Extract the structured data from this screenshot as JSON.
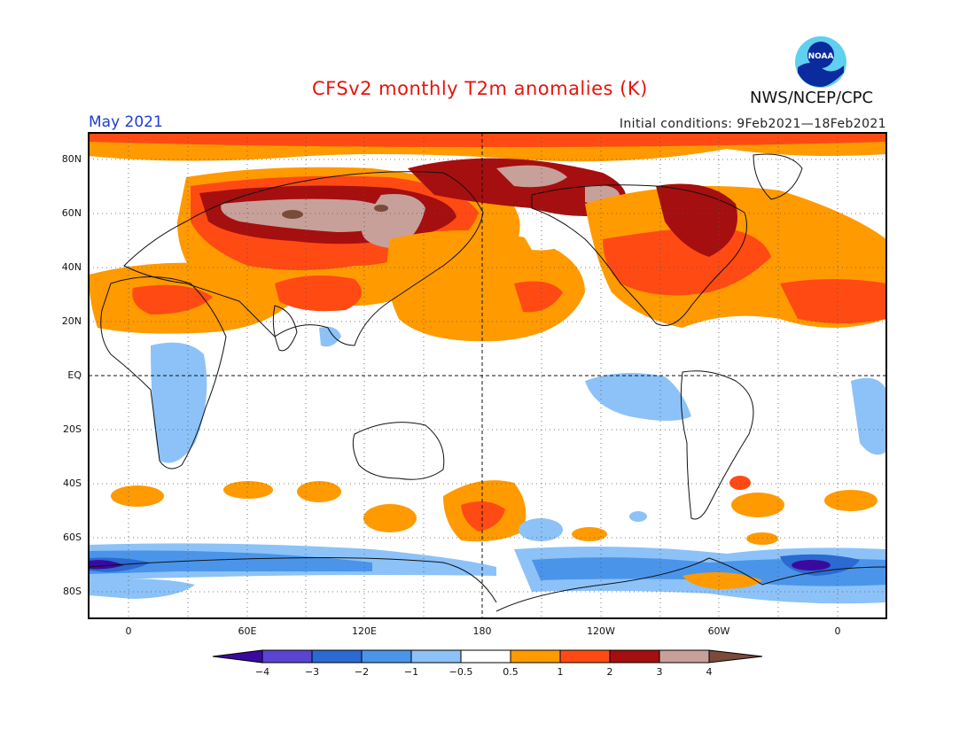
{
  "header": {
    "title": "CFSv2 monthly T2m anomalies (K)",
    "period": "May 2021",
    "initial_conditions": "Initial conditions: 9Feb2021—18Feb2021",
    "agency": "NWS/NCEP/CPC",
    "logo_text": "NOAA",
    "logo_icon": "noaa-logo-icon"
  },
  "map": {
    "projection": "equirectangular",
    "lon_range": [
      -20,
      380
    ],
    "lat_range": [
      -90,
      90
    ],
    "lat_labels": [
      "80N",
      "60N",
      "40N",
      "20N",
      "EQ",
      "20S",
      "40S",
      "60S",
      "80S"
    ],
    "lon_labels": [
      "0",
      "60E",
      "120E",
      "180",
      "120W",
      "60W",
      "0"
    ],
    "grid": "dotted",
    "reference_lines": [
      "EQ",
      "180"
    ],
    "regions": [
      {
        "area": "Arctic / northern Eurasia",
        "anomaly": "+1 to +4"
      },
      {
        "area": "Central Siberia",
        "anomaly": "+3 to +4"
      },
      {
        "area": "North Pacific",
        "anomaly": "+0.5 to +2"
      },
      {
        "area": "Eastern Canada / Greenland",
        "anomaly": "+2 to +3"
      },
      {
        "area": "North Africa / Middle East",
        "anomaly": "+1 to +2"
      },
      {
        "area": "Equatorial East Pacific",
        "anomaly": "-0.5 to -1"
      },
      {
        "area": "East Africa",
        "anomaly": "-0.5 to -1"
      },
      {
        "area": "Antarctic coast",
        "anomaly": "-1 to -4"
      },
      {
        "area": "South Pacific 50S",
        "anomaly": "+0.5 to +2"
      }
    ]
  },
  "colorbar": {
    "labels": [
      "−4",
      "−3",
      "−2",
      "−1",
      "−0.5",
      "0.5",
      "1",
      "2",
      "3",
      "4"
    ],
    "colors": [
      "#3a0a9e",
      "#5a44d2",
      "#2a6ad2",
      "#4a95ea",
      "#8cc2f8",
      "#ffffff",
      "#ff9a00",
      "#ff4a14",
      "#a50f0f",
      "#c8a09a",
      "#7a4a3a"
    ]
  }
}
